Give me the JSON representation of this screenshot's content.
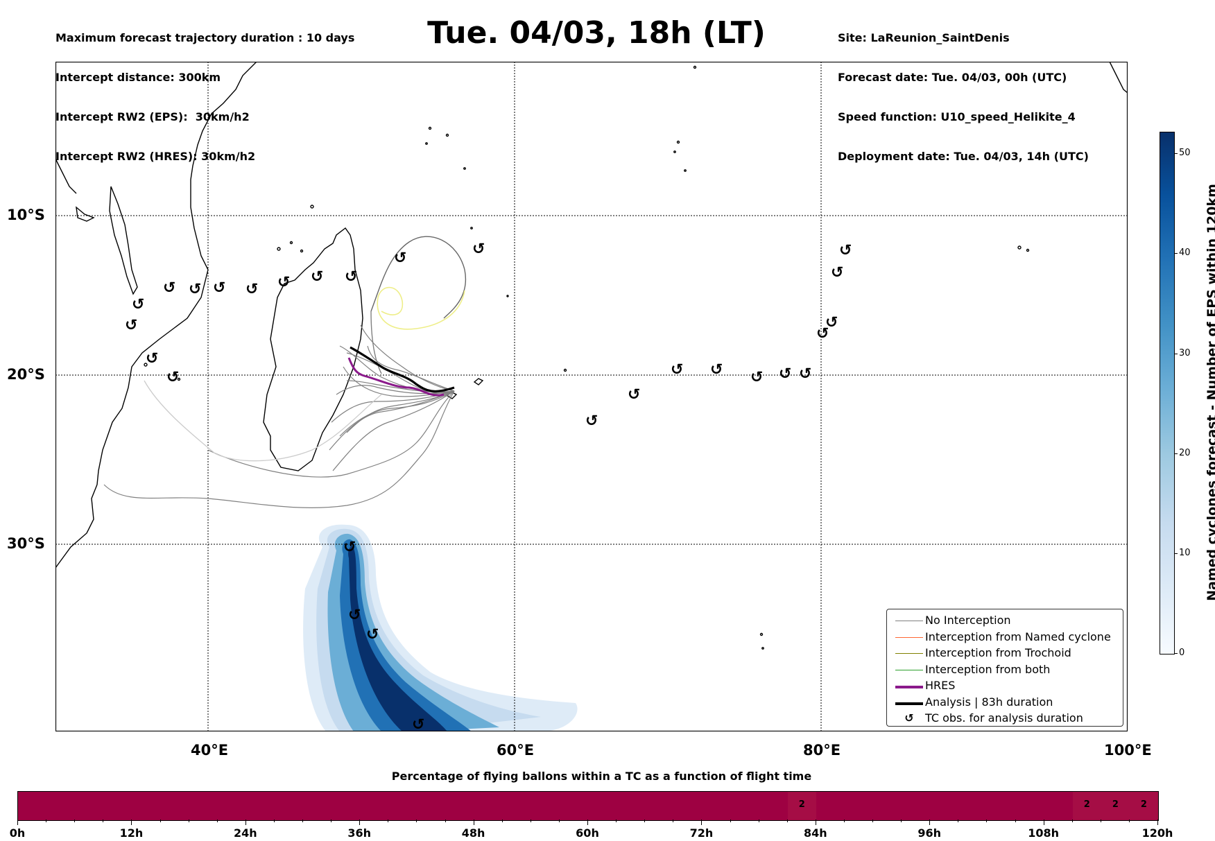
{
  "header": {
    "left": [
      "Maximum forecast trajectory duration : 10 days",
      "Intercept distance: 300km",
      "Intercept RW2 (EPS):  30km/h2",
      "Intercept RW2 (HRES): 30km/h2"
    ],
    "title": "Tue. 04/03, 18h (LT)",
    "right": [
      "Site: LaReunion_SaintDenis",
      "Forecast date: Tue. 04/03, 00h (UTC)",
      "Speed function: U10_speed_Helikite_4",
      "Deployment date: Tue. 04/03, 14h (UTC)"
    ]
  },
  "map": {
    "lat_labels": [
      "10°S",
      "20°S",
      "30°S"
    ],
    "lon_labels": [
      "40°E",
      "60°E",
      "80°E",
      "100°E"
    ],
    "colors": {
      "no_interception": "#808080",
      "named_cyclone": "#ff6633",
      "trochoid": "#808000",
      "both": "#2ca02c",
      "hres": "#8b1a8b",
      "analysis": "#000000",
      "yellow_track": "#eeee88"
    },
    "tc_symbol": "↺"
  },
  "legend": {
    "items": [
      {
        "label": "No Interception",
        "color": "#808080",
        "kind": "line-thin"
      },
      {
        "label": "Interception from Named cyclone",
        "color": "#ff6633",
        "kind": "line-thin"
      },
      {
        "label": "Interception from Trochoid",
        "color": "#808000",
        "kind": "line-thin"
      },
      {
        "label": "Interception from both",
        "color": "#2ca02c",
        "kind": "line-thin"
      },
      {
        "label": "HRES",
        "color": "#8b1a8b",
        "kind": "line-thick"
      },
      {
        "label": "Analysis | 83h duration",
        "color": "#000000",
        "kind": "line-thick"
      },
      {
        "label": "TC obs. for analysis duration",
        "color": "#000000",
        "kind": "symbol",
        "symbol": "↺"
      }
    ]
  },
  "colorbar": {
    "label": "Named cyclones forecast - Number of EPS within 120km",
    "ticks": [
      "0",
      "10",
      "20",
      "30",
      "40",
      "50"
    ]
  },
  "bottom": {
    "title": "Percentage of flying ballons within a TC as a function of flight time",
    "ticks": [
      "0h",
      "12h",
      "24h",
      "36h",
      "48h",
      "60h",
      "72h",
      "84h",
      "96h",
      "108h",
      "120h"
    ],
    "highlight_values": [
      {
        "hour": 81,
        "value": "2"
      },
      {
        "hour": 111,
        "value": "2"
      },
      {
        "hour": 114,
        "value": "2"
      },
      {
        "hour": 117,
        "value": "2"
      }
    ]
  }
}
